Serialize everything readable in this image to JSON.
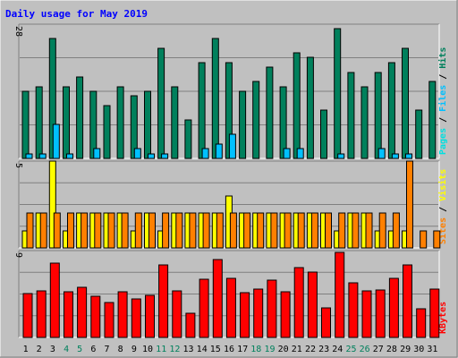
{
  "chart_data": [
    {
      "type": "bar",
      "title": "Daily usage for May 2019",
      "panel_label_parts": [
        "Pages",
        "Files",
        "Hits"
      ],
      "y_max_label": "28",
      "ylim": [
        0,
        28
      ],
      "categories": [
        "1",
        "2",
        "3",
        "4",
        "5",
        "6",
        "7",
        "8",
        "9",
        "10",
        "11",
        "12",
        "13",
        "14",
        "15",
        "16",
        "17",
        "18",
        "19",
        "20",
        "21",
        "22",
        "23",
        "24",
        "25",
        "26",
        "27",
        "28",
        "29",
        "30",
        "31"
      ],
      "series": [
        {
          "name": "Hits",
          "values": [
            14,
            15,
            25,
            15,
            17,
            14,
            11,
            15,
            13,
            14,
            23,
            15,
            8,
            20,
            25,
            20,
            14,
            16,
            19,
            15,
            22,
            21,
            10,
            27,
            18,
            15,
            18,
            20,
            23,
            10,
            16
          ]
        },
        {
          "name": "Files",
          "values": [
            1,
            1,
            7,
            1,
            0,
            2,
            0,
            0,
            2,
            1,
            1,
            0,
            0,
            2,
            3,
            5,
            0,
            0,
            0,
            2,
            2,
            0,
            0,
            1,
            0,
            0,
            2,
            1,
            1,
            0,
            0
          ]
        },
        {
          "name": "Pages",
          "values": [
            0,
            0,
            0,
            0,
            0,
            0,
            0,
            0,
            0,
            0,
            0,
            0,
            0,
            0,
            0,
            0,
            0,
            0,
            0,
            0,
            0,
            0,
            0,
            0,
            0,
            0,
            0,
            0,
            0,
            0,
            0
          ]
        }
      ]
    },
    {
      "type": "bar",
      "panel_label_parts": [
        "Sites",
        "Visits"
      ],
      "y_max_label": "5",
      "ylim": [
        0,
        5
      ],
      "categories": [
        "1",
        "2",
        "3",
        "4",
        "5",
        "6",
        "7",
        "8",
        "9",
        "10",
        "11",
        "12",
        "13",
        "14",
        "15",
        "16",
        "17",
        "18",
        "19",
        "20",
        "21",
        "22",
        "23",
        "24",
        "25",
        "26",
        "27",
        "28",
        "29",
        "30",
        "31"
      ],
      "series": [
        {
          "name": "Visits",
          "values": [
            1,
            2,
            5,
            1,
            2,
            2,
            2,
            2,
            1,
            2,
            1,
            2,
            2,
            2,
            2,
            3,
            2,
            2,
            2,
            2,
            2,
            2,
            2,
            1,
            2,
            2,
            1,
            1,
            1,
            0,
            0
          ]
        },
        {
          "name": "Sites",
          "values": [
            2,
            2,
            2,
            2,
            2,
            2,
            2,
            2,
            2,
            2,
            2,
            2,
            2,
            2,
            2,
            2,
            2,
            2,
            2,
            2,
            2,
            2,
            2,
            2,
            2,
            2,
            2,
            2,
            5,
            1,
            1
          ]
        }
      ]
    },
    {
      "type": "bar",
      "panel_label_parts": [
        "KBytes"
      ],
      "y_max_label": "9",
      "ylim": [
        0,
        9
      ],
      "categories": [
        "1",
        "2",
        "3",
        "4",
        "5",
        "6",
        "7",
        "8",
        "9",
        "10",
        "11",
        "12",
        "13",
        "14",
        "15",
        "16",
        "17",
        "18",
        "19",
        "20",
        "21",
        "22",
        "23",
        "24",
        "25",
        "26",
        "27",
        "28",
        "29",
        "30",
        "31"
      ],
      "series": [
        {
          "name": "KBytes",
          "values": [
            4.5,
            4.8,
            7.7,
            4.7,
            5.2,
            4.3,
            3.6,
            4.7,
            4.0,
            4.4,
            7.5,
            4.8,
            2.5,
            6.0,
            8.1,
            6.1,
            4.6,
            5.0,
            5.9,
            4.7,
            7.2,
            6.8,
            3.1,
            8.8,
            5.7,
            4.8,
            4.9,
            6.1,
            7.5,
            3.0,
            5.0
          ]
        }
      ]
    }
  ],
  "colors": {
    "Hits": "#00805c",
    "Files": "#00c0ff",
    "Pages": "#00e0e0",
    "Visits": "#ffff00",
    "Sites": "#ff8000",
    "KBytes": "#ff0000",
    "title": "#0000ff",
    "weekend_label": "#00805c",
    "weekday_label": "#000000"
  },
  "weekend_days": [
    "4",
    "5",
    "11",
    "12",
    "18",
    "19",
    "25",
    "26"
  ]
}
